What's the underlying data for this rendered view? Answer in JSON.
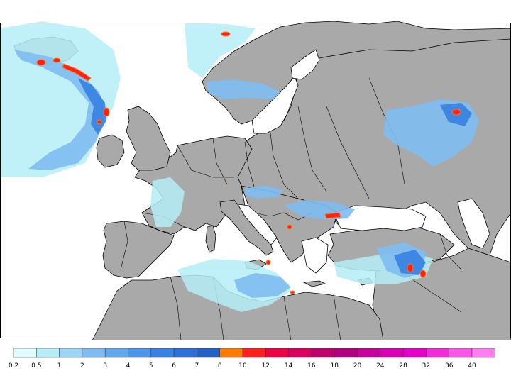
{
  "map": {
    "field": "precipitation",
    "region": "Europe and Mediterranean",
    "colors": {
      "sea": "#ffffff",
      "land": "#a9a9a9",
      "border": "#000000"
    }
  },
  "legend": {
    "labels": [
      "0.2",
      "0.5",
      "1",
      "2",
      "3",
      "4",
      "5",
      "6",
      "7",
      "8",
      "10",
      "12",
      "14",
      "16",
      "18",
      "20",
      "24",
      "28",
      "32",
      "36",
      "40"
    ],
    "colors": [
      "#e0fbfc",
      "#b5eef7",
      "#9bd4f4",
      "#7ebcf1",
      "#61a9ec",
      "#4b96ea",
      "#3781e2",
      "#2d6fd6",
      "#2561c4",
      "#ff7a00",
      "#ff1f1f",
      "#ee0044",
      "#d9005e",
      "#c2006d",
      "#b30082",
      "#c70099",
      "#d800b3",
      "#e500c7",
      "#f22ad9",
      "#fa55e8",
      "#ff7ff2"
    ]
  }
}
